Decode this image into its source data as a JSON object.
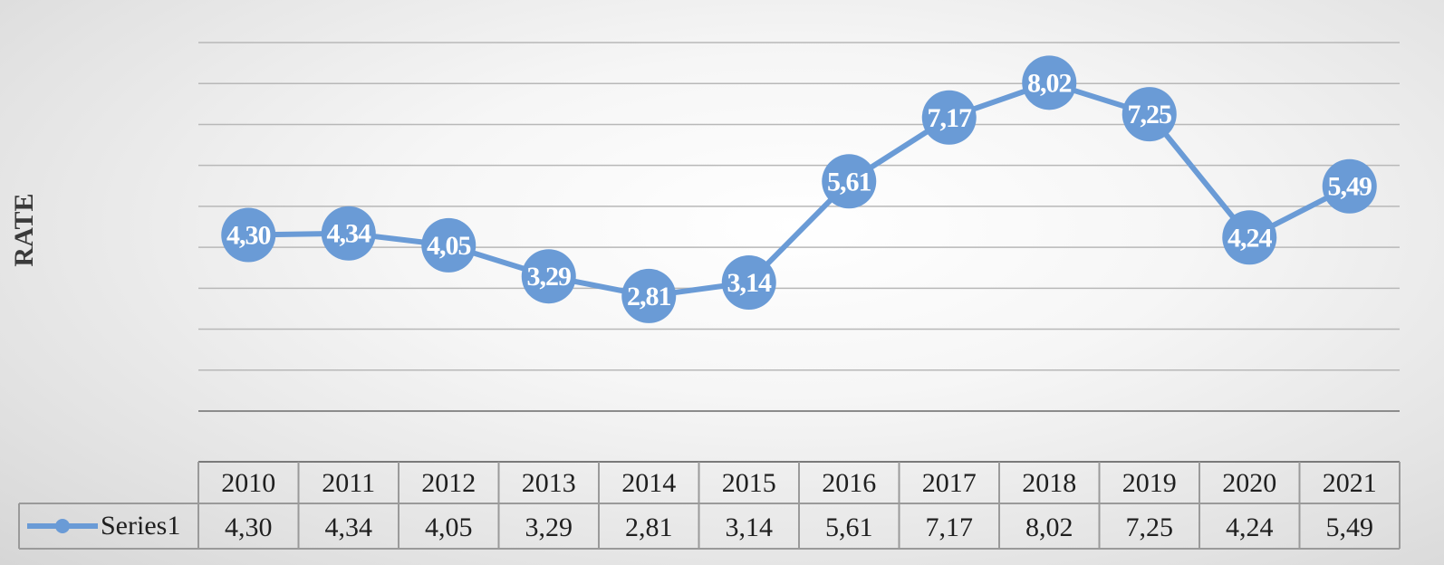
{
  "chart_data": {
    "type": "line",
    "categories": [
      "2010",
      "2011",
      "2012",
      "2013",
      "2014",
      "2015",
      "2016",
      "2017",
      "2018",
      "2019",
      "2020",
      "2021"
    ],
    "series": [
      {
        "name": "Series1",
        "values": [
          4.3,
          4.34,
          4.05,
          3.29,
          2.81,
          3.14,
          5.61,
          7.17,
          8.02,
          7.25,
          4.24,
          5.49
        ],
        "labels": [
          "4,30",
          "4,34",
          "4,05",
          "3,29",
          "2,81",
          "3,14",
          "5,61",
          "7,17",
          "8,02",
          "7,25",
          "4,24",
          "5,49"
        ],
        "color": "#6a9bd6"
      }
    ],
    "ylabel": "RATE",
    "xlabel": "",
    "ylim": [
      0,
      9
    ],
    "grid": true,
    "legend": "data-table",
    "data_table": true
  }
}
